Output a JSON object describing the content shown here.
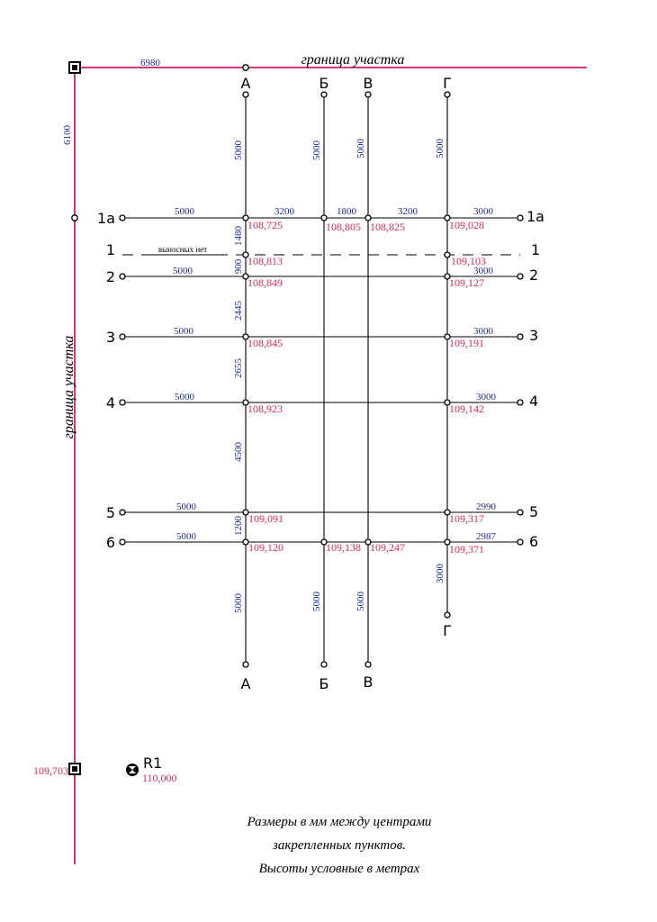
{
  "boundary": {
    "label": "граница участка",
    "corner_top_dim": "6980",
    "corner_left_dim": "6100",
    "corner_bottom_elevation": "109,703"
  },
  "axes": {
    "A": "А",
    "B": "Б",
    "V": "В",
    "G": "Г",
    "r1a": "1а",
    "r1": "1",
    "r2": "2",
    "r3": "3",
    "r4": "4",
    "r5": "5",
    "r6": "6"
  },
  "dims": {
    "top_A": "5000",
    "top_B": "5000",
    "top_V": "5000",
    "top_G": "5000",
    "row1a_left": "5000",
    "row1a_AB": "3200",
    "row1a_BV": "1800",
    "row1a_VG": "3200",
    "row1a_right": "3000",
    "A_1a_1": "1480",
    "row1_note": "выносных нет",
    "A_1_2": "900",
    "row2_left": "5000",
    "row2_right": "3000",
    "A_2_3": "2445",
    "row3_left": "5000",
    "row3_right": "3000",
    "A_3_4": "2655",
    "row4_left": "5000",
    "row4_right": "3000",
    "A_4_5": "4500",
    "row5_left": "5000",
    "row5_right": "2990",
    "A_5_6": "1200",
    "row6_left": "5000",
    "row6_right": "2987",
    "G_bottom": "3000",
    "bottom_A": "5000",
    "bottom_B": "5000",
    "bottom_V": "5000"
  },
  "elev": {
    "A_1a": "108,725",
    "B_1a": "108,805",
    "V_1a": "108,825",
    "G_1a": "109,028",
    "A_1": "108,813",
    "G_1": "109,103",
    "A_2": "108,849",
    "G_2": "109,127",
    "A_3": "108,845",
    "G_3": "109,191",
    "A_4": "108,923",
    "G_4": "109,142",
    "A_5": "109,091",
    "G_5": "109,317",
    "A_6": "109,120",
    "B_6": "109,138",
    "V_6": "109,247",
    "G_6": "109,371"
  },
  "benchmark": {
    "label": "R1",
    "elevation": "110,000"
  },
  "note": {
    "line1": "Размеры в мм между центрами",
    "line2": "закрепленных пунктов.",
    "line3": "Высоты условные в метрах"
  },
  "colors": {
    "boundary": "#c8206a",
    "dimension": "#1f2a9e",
    "elevation": "#e0245e"
  }
}
